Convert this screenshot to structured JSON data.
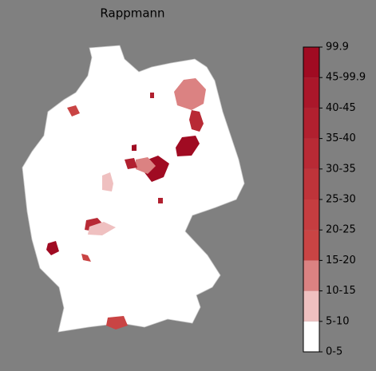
{
  "title": "Rappmann",
  "colorbar": {
    "ticks": [
      "0-5",
      "5-10",
      "10-15",
      "15-20",
      "20-25",
      "25-30",
      "30-35",
      "35-40",
      "40-45",
      "45-99.9",
      "99.9"
    ],
    "colors": [
      "#ffffff",
      "#efc0c0",
      "#db8282",
      "#c94444",
      "#c53d40",
      "#bf343a",
      "#b82a35",
      "#b1202f",
      "#aa172a",
      "#a00b22"
    ]
  }
}
